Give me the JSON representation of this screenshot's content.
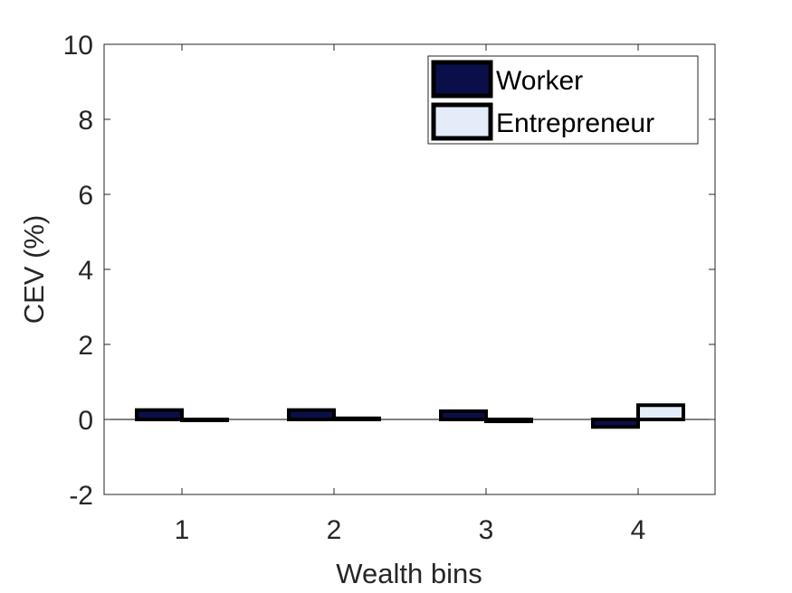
{
  "chart_data": {
    "type": "bar",
    "title": "",
    "xlabel": "Wealth bins",
    "ylabel": "CEV (%)",
    "categories": [
      "1",
      "2",
      "3",
      "4"
    ],
    "ylim": [
      -2,
      10
    ],
    "yticks": [
      "-2",
      "0",
      "2",
      "4",
      "6",
      "8",
      "10"
    ],
    "series": [
      {
        "name": "Worker",
        "color": "#0a0f4a",
        "values": [
          0.25,
          0.25,
          0.22,
          -0.2
        ]
      },
      {
        "name": "Entrepreneur",
        "color": "#e3ecf8",
        "values": [
          0.0,
          0.03,
          -0.05,
          0.38
        ]
      }
    ],
    "legend_position": "top-right",
    "grid": false,
    "zero_line": true
  }
}
